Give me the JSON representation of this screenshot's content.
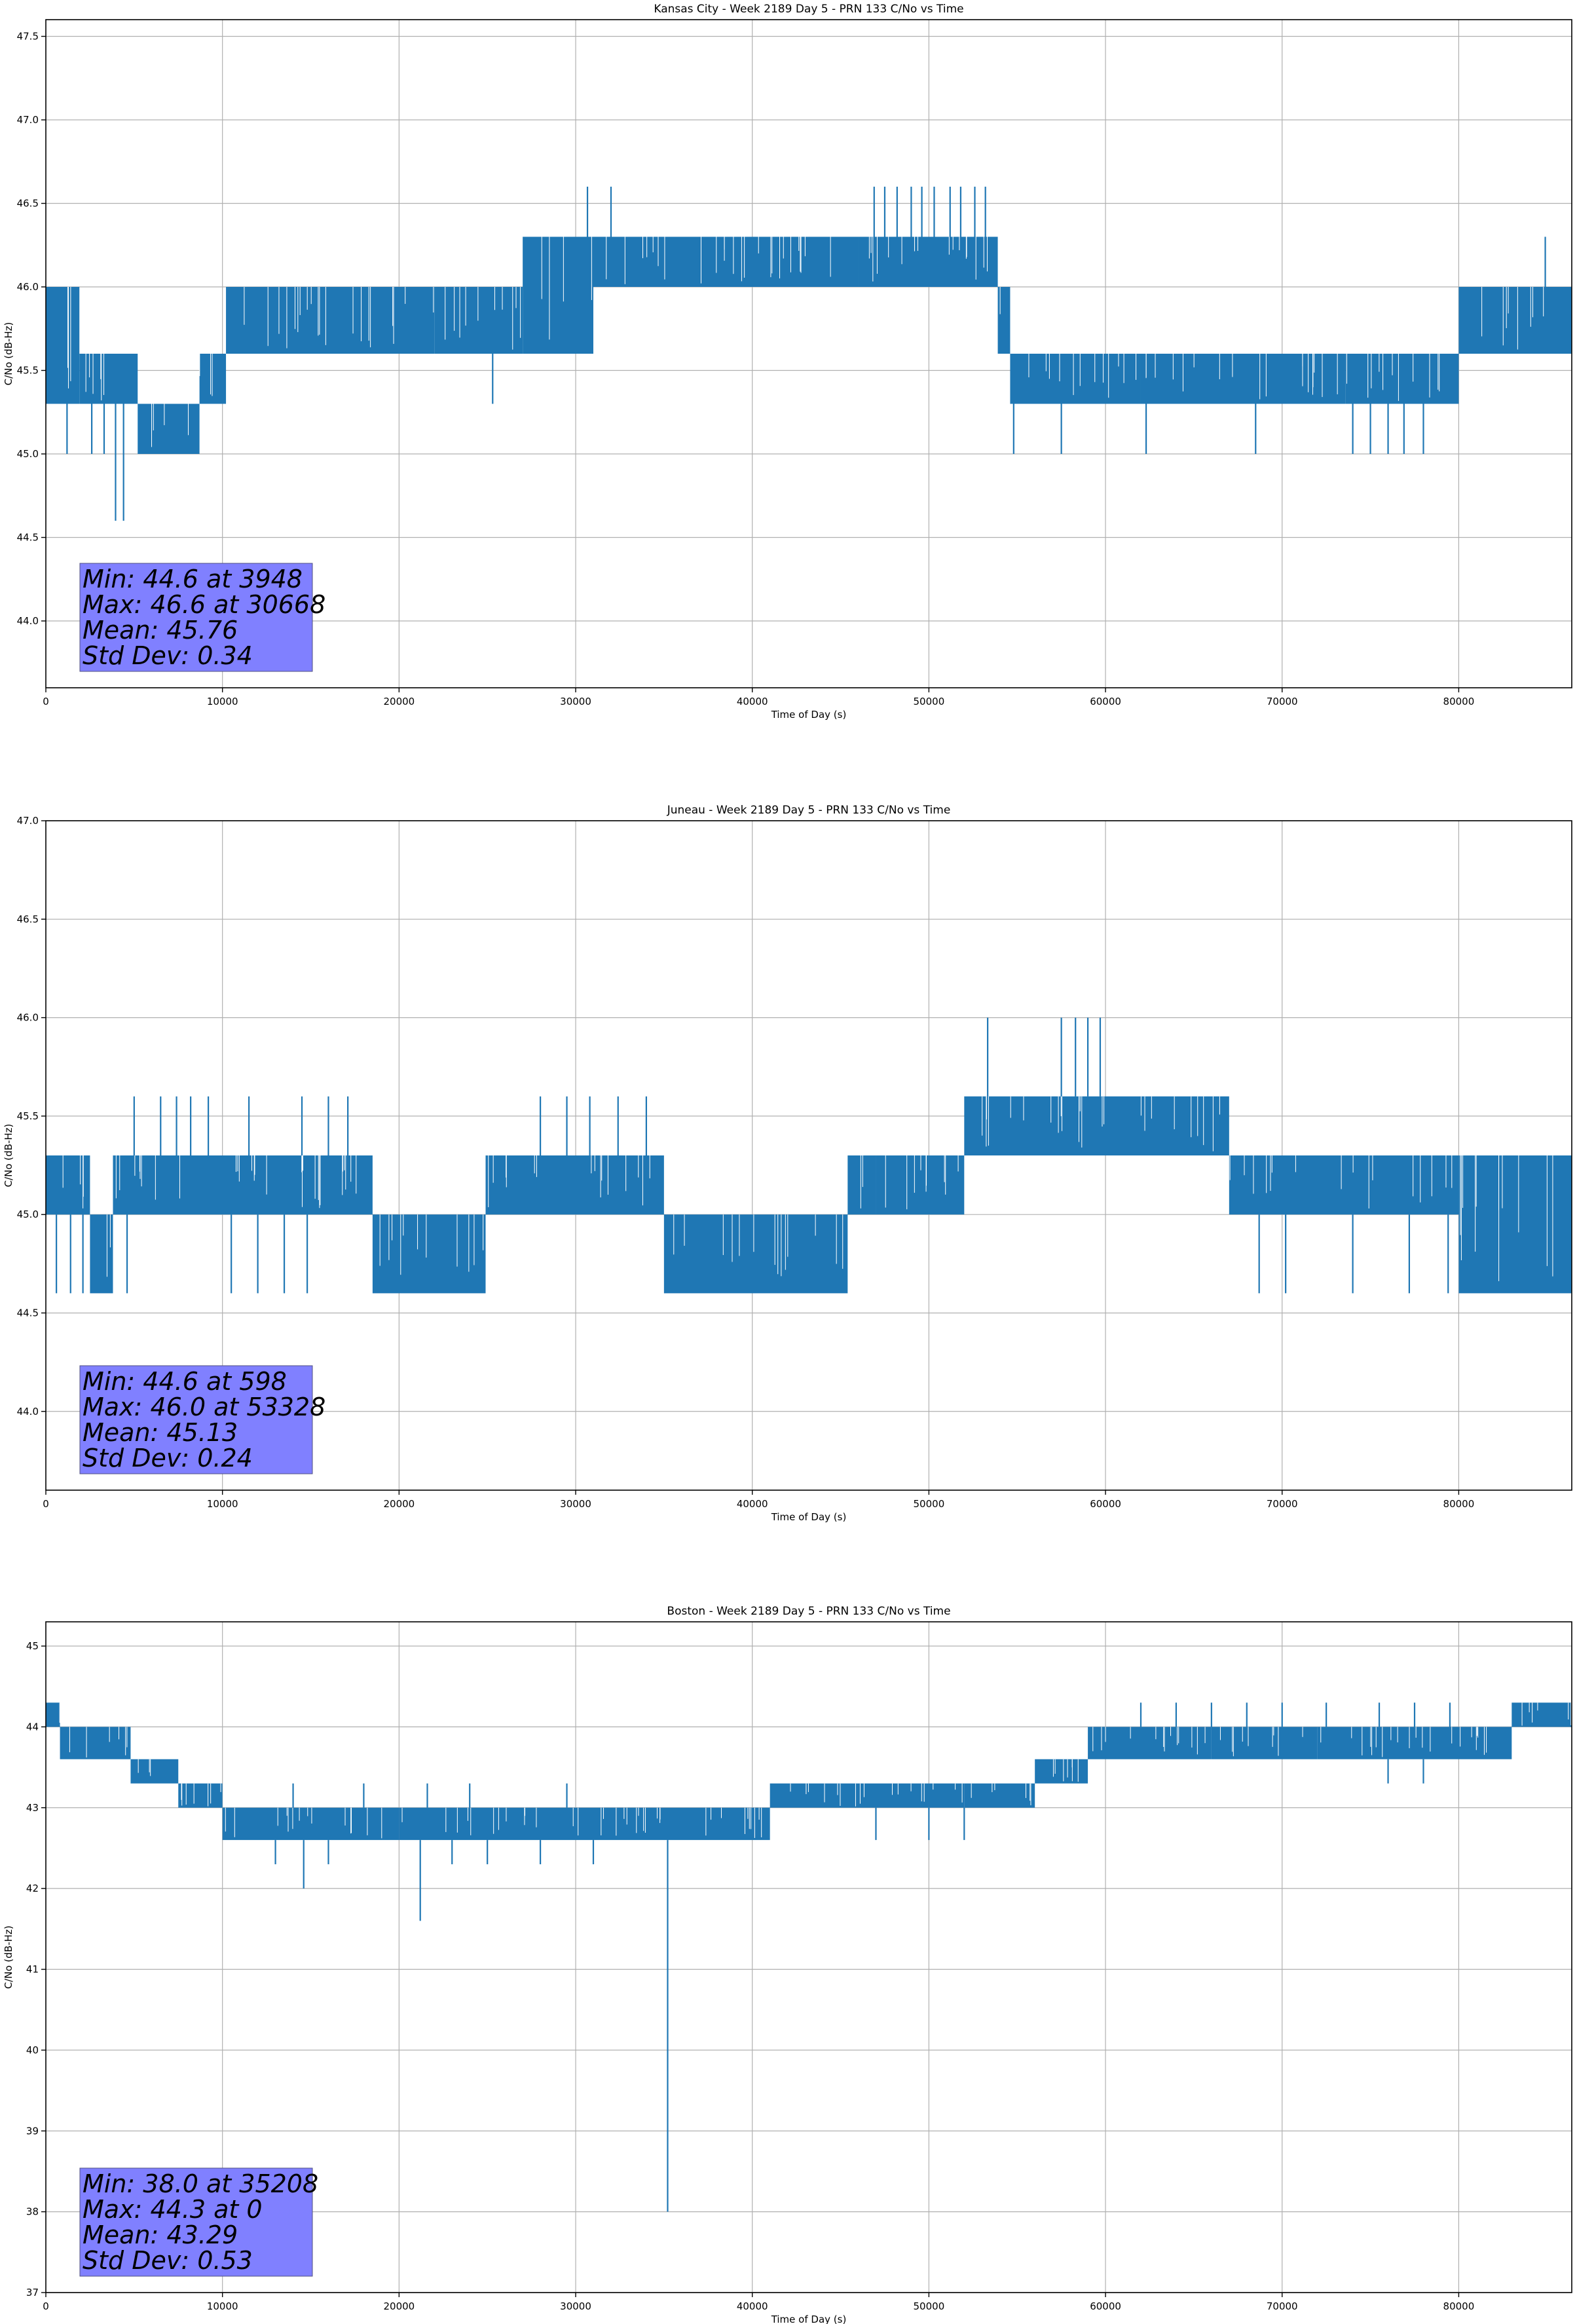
{
  "chart_data": [
    {
      "type": "line",
      "title": "Kansas City - Week 2189 Day 5 - PRN 133 C/No vs Time",
      "xlabel": "Time of Day (s)",
      "ylabel": "C/No (dB-Hz)",
      "xlim": [
        0,
        86400
      ],
      "ylim": [
        43.6,
        47.6
      ],
      "xticks": [
        0,
        10000,
        20000,
        30000,
        40000,
        50000,
        60000,
        70000,
        80000
      ],
      "xtick_labels": [
        "0",
        "10000",
        "20000",
        "30000",
        "40000",
        "50000",
        "60000",
        "70000",
        "80000"
      ],
      "yticks": [
        44.0,
        44.5,
        45.0,
        45.5,
        46.0,
        46.5,
        47.0,
        47.5
      ],
      "ytick_labels": [
        "44.0",
        "44.5",
        "45.0",
        "45.5",
        "46.0",
        "46.5",
        "47.0",
        "47.5"
      ],
      "grid": true,
      "series_color": "#1f77b4",
      "band_segments": [
        {
          "x": [
            0,
            1900
          ],
          "low": 45.3,
          "high": 46.0
        },
        {
          "x": [
            1900,
            5200
          ],
          "low": 45.3,
          "high": 45.6
        },
        {
          "x": [
            5200,
            8700
          ],
          "low": 45.0,
          "high": 45.3
        },
        {
          "x": [
            8700,
            10200
          ],
          "low": 45.3,
          "high": 45.6
        },
        {
          "x": [
            10200,
            22000
          ],
          "low": 45.6,
          "high": 46.0
        },
        {
          "x": [
            22000,
            27000
          ],
          "low": 45.6,
          "high": 46.0
        },
        {
          "x": [
            27000,
            31000
          ],
          "low": 45.6,
          "high": 46.3
        },
        {
          "x": [
            31000,
            46000
          ],
          "low": 46.0,
          "high": 46.3
        },
        {
          "x": [
            46000,
            53900
          ],
          "low": 46.0,
          "high": 46.3
        },
        {
          "x": [
            53900,
            54600
          ],
          "low": 45.6,
          "high": 46.0
        },
        {
          "x": [
            54600,
            62000
          ],
          "low": 45.3,
          "high": 45.6
        },
        {
          "x": [
            62000,
            73600
          ],
          "low": 45.3,
          "high": 45.6
        },
        {
          "x": [
            73600,
            80000
          ],
          "low": 45.3,
          "high": 45.6
        },
        {
          "x": [
            80000,
            86400
          ],
          "low": 45.6,
          "high": 46.0
        }
      ],
      "spikes": [
        {
          "x": 3948,
          "y": 44.6
        },
        {
          "x": 4400,
          "y": 44.6
        },
        {
          "x": 1200,
          "y": 45.0
        },
        {
          "x": 2600,
          "y": 45.0
        },
        {
          "x": 3300,
          "y": 45.0
        },
        {
          "x": 25300,
          "y": 45.3
        },
        {
          "x": 30668,
          "y": 46.6
        },
        {
          "x": 32000,
          "y": 46.6
        },
        {
          "x": 46900,
          "y": 46.6
        },
        {
          "x": 47500,
          "y": 46.6
        },
        {
          "x": 48200,
          "y": 46.6
        },
        {
          "x": 49000,
          "y": 46.6
        },
        {
          "x": 49600,
          "y": 46.6
        },
        {
          "x": 50300,
          "y": 46.6
        },
        {
          "x": 51200,
          "y": 46.6
        },
        {
          "x": 51800,
          "y": 46.6
        },
        {
          "x": 52600,
          "y": 46.6
        },
        {
          "x": 53200,
          "y": 46.6
        },
        {
          "x": 54800,
          "y": 45.0
        },
        {
          "x": 57500,
          "y": 45.0
        },
        {
          "x": 62300,
          "y": 45.0
        },
        {
          "x": 68500,
          "y": 45.0
        },
        {
          "x": 74000,
          "y": 45.0
        },
        {
          "x": 75000,
          "y": 45.0
        },
        {
          "x": 76000,
          "y": 45.0
        },
        {
          "x": 76900,
          "y": 45.0
        },
        {
          "x": 78000,
          "y": 45.0
        },
        {
          "x": 84900,
          "y": 46.3
        }
      ],
      "stats": {
        "min": "Min: 44.6 at 3948",
        "max": "Max: 46.6 at 30668",
        "mean": "Mean: 45.76",
        "std": "Std Dev: 0.34"
      }
    },
    {
      "type": "line",
      "title": "Juneau - Week 2189 Day 5 - PRN 133 C/No vs Time",
      "xlabel": "Time of Day (s)",
      "ylabel": "C/No (dB-Hz)",
      "xlim": [
        0,
        86400
      ],
      "ylim": [
        43.6,
        47.0
      ],
      "xticks": [
        0,
        10000,
        20000,
        30000,
        40000,
        50000,
        60000,
        70000,
        80000
      ],
      "xtick_labels": [
        "0",
        "10000",
        "20000",
        "30000",
        "40000",
        "50000",
        "60000",
        "70000",
        "80000"
      ],
      "yticks": [
        44.0,
        44.5,
        45.0,
        45.5,
        46.0,
        46.5,
        47.0
      ],
      "ytick_labels": [
        "44.0",
        "44.5",
        "45.0",
        "45.5",
        "46.0",
        "46.5",
        "47.0"
      ],
      "grid": true,
      "series_color": "#1f77b4",
      "band_segments": [
        {
          "x": [
            0,
            2500
          ],
          "low": 45.0,
          "high": 45.3
        },
        {
          "x": [
            2500,
            3800
          ],
          "low": 44.6,
          "high": 45.0
        },
        {
          "x": [
            3800,
            18500
          ],
          "low": 45.0,
          "high": 45.3
        },
        {
          "x": [
            18500,
            24900
          ],
          "low": 44.6,
          "high": 45.0
        },
        {
          "x": [
            24900,
            35000
          ],
          "low": 45.0,
          "high": 45.3
        },
        {
          "x": [
            35000,
            45400
          ],
          "low": 44.6,
          "high": 45.0
        },
        {
          "x": [
            45400,
            47000
          ],
          "low": 45.0,
          "high": 45.3
        },
        {
          "x": [
            47000,
            52000
          ],
          "low": 45.0,
          "high": 45.3
        },
        {
          "x": [
            52000,
            67000
          ],
          "low": 45.3,
          "high": 45.6
        },
        {
          "x": [
            67000,
            80000
          ],
          "low": 45.0,
          "high": 45.3
        },
        {
          "x": [
            80000,
            86400
          ],
          "low": 44.6,
          "high": 45.3
        }
      ],
      "spikes": [
        {
          "x": 598,
          "y": 44.6
        },
        {
          "x": 1400,
          "y": 44.6
        },
        {
          "x": 2100,
          "y": 44.6
        },
        {
          "x": 4600,
          "y": 44.6
        },
        {
          "x": 10500,
          "y": 44.6
        },
        {
          "x": 12000,
          "y": 44.6
        },
        {
          "x": 13500,
          "y": 44.6
        },
        {
          "x": 14800,
          "y": 44.6
        },
        {
          "x": 5000,
          "y": 45.6
        },
        {
          "x": 6500,
          "y": 45.6
        },
        {
          "x": 7400,
          "y": 45.6
        },
        {
          "x": 8200,
          "y": 45.6
        },
        {
          "x": 9200,
          "y": 45.6
        },
        {
          "x": 11500,
          "y": 45.6
        },
        {
          "x": 14500,
          "y": 45.6
        },
        {
          "x": 16000,
          "y": 45.6
        },
        {
          "x": 17100,
          "y": 45.6
        },
        {
          "x": 28000,
          "y": 45.6
        },
        {
          "x": 29500,
          "y": 45.6
        },
        {
          "x": 30800,
          "y": 45.6
        },
        {
          "x": 32400,
          "y": 45.6
        },
        {
          "x": 34000,
          "y": 45.6
        },
        {
          "x": 53328,
          "y": 46.0
        },
        {
          "x": 57500,
          "y": 46.0
        },
        {
          "x": 58300,
          "y": 46.0
        },
        {
          "x": 59000,
          "y": 46.0
        },
        {
          "x": 59700,
          "y": 46.0
        },
        {
          "x": 68700,
          "y": 44.6
        },
        {
          "x": 70200,
          "y": 44.6
        },
        {
          "x": 74000,
          "y": 44.6
        },
        {
          "x": 77200,
          "y": 44.6
        },
        {
          "x": 79400,
          "y": 44.6
        }
      ],
      "stats": {
        "min": "Min: 44.6 at 598",
        "max": "Max: 46.0 at 53328",
        "mean": "Mean: 45.13",
        "std": "Std Dev: 0.24"
      }
    },
    {
      "type": "line",
      "title": "Boston - Week 2189 Day 5 - PRN 133 C/No vs Time",
      "xlabel": "Time of Day (s)",
      "ylabel": "C/No (dB-Hz)",
      "xlim": [
        0,
        86400
      ],
      "ylim": [
        37,
        45.3
      ],
      "xticks": [
        0,
        10000,
        20000,
        30000,
        40000,
        50000,
        60000,
        70000,
        80000
      ],
      "xtick_labels": [
        "0",
        "10000",
        "20000",
        "30000",
        "40000",
        "50000",
        "60000",
        "70000",
        "80000"
      ],
      "yticks": [
        37,
        38,
        39,
        40,
        41,
        42,
        43,
        44,
        45
      ],
      "ytick_labels": [
        "37",
        "38",
        "39",
        "40",
        "41",
        "42",
        "43",
        "44",
        "45"
      ],
      "grid": true,
      "series_color": "#1f77b4",
      "band_segments": [
        {
          "x": [
            0,
            800
          ],
          "low": 44.0,
          "high": 44.3
        },
        {
          "x": [
            800,
            4800
          ],
          "low": 43.6,
          "high": 44.0
        },
        {
          "x": [
            4800,
            7500
          ],
          "low": 43.3,
          "high": 43.6
        },
        {
          "x": [
            7500,
            10000
          ],
          "low": 43.0,
          "high": 43.3
        },
        {
          "x": [
            10000,
            20000
          ],
          "low": 42.6,
          "high": 43.0
        },
        {
          "x": [
            20000,
            30000
          ],
          "low": 42.6,
          "high": 43.0
        },
        {
          "x": [
            30000,
            41000
          ],
          "low": 42.6,
          "high": 43.0
        },
        {
          "x": [
            41000,
            52000
          ],
          "low": 43.0,
          "high": 43.3
        },
        {
          "x": [
            52000,
            56000
          ],
          "low": 43.0,
          "high": 43.3
        },
        {
          "x": [
            56000,
            59000
          ],
          "low": 43.3,
          "high": 43.6
        },
        {
          "x": [
            59000,
            66000
          ],
          "low": 43.6,
          "high": 44.0
        },
        {
          "x": [
            66000,
            72000
          ],
          "low": 43.6,
          "high": 44.0
        },
        {
          "x": [
            72000,
            83000
          ],
          "low": 43.6,
          "high": 44.0
        },
        {
          "x": [
            83000,
            86400
          ],
          "low": 44.0,
          "high": 44.3
        }
      ],
      "spikes": [
        {
          "x": 0,
          "y": 44.3
        },
        {
          "x": 35208,
          "y": 38.0
        },
        {
          "x": 21200,
          "y": 41.6
        },
        {
          "x": 14600,
          "y": 42.0
        },
        {
          "x": 13000,
          "y": 42.3
        },
        {
          "x": 16000,
          "y": 42.3
        },
        {
          "x": 23000,
          "y": 42.3
        },
        {
          "x": 25000,
          "y": 42.3
        },
        {
          "x": 28000,
          "y": 42.3
        },
        {
          "x": 31000,
          "y": 42.3
        },
        {
          "x": 14000,
          "y": 43.3
        },
        {
          "x": 18000,
          "y": 43.3
        },
        {
          "x": 21600,
          "y": 43.3
        },
        {
          "x": 24000,
          "y": 43.3
        },
        {
          "x": 29500,
          "y": 43.3
        },
        {
          "x": 62000,
          "y": 44.3
        },
        {
          "x": 64000,
          "y": 44.3
        },
        {
          "x": 66000,
          "y": 44.3
        },
        {
          "x": 68000,
          "y": 44.3
        },
        {
          "x": 70000,
          "y": 44.3
        },
        {
          "x": 72500,
          "y": 44.3
        },
        {
          "x": 75500,
          "y": 44.3
        },
        {
          "x": 77500,
          "y": 44.3
        },
        {
          "x": 79500,
          "y": 44.3
        },
        {
          "x": 47000,
          "y": 42.6
        },
        {
          "x": 50000,
          "y": 42.6
        },
        {
          "x": 52000,
          "y": 42.6
        },
        {
          "x": 76000,
          "y": 43.3
        },
        {
          "x": 78000,
          "y": 43.3
        }
      ],
      "stats": {
        "min": "Min: 38.0 at 35208",
        "max": "Max: 44.3 at 0",
        "mean": "Mean: 43.29",
        "std": "Std Dev: 0.53"
      }
    }
  ]
}
